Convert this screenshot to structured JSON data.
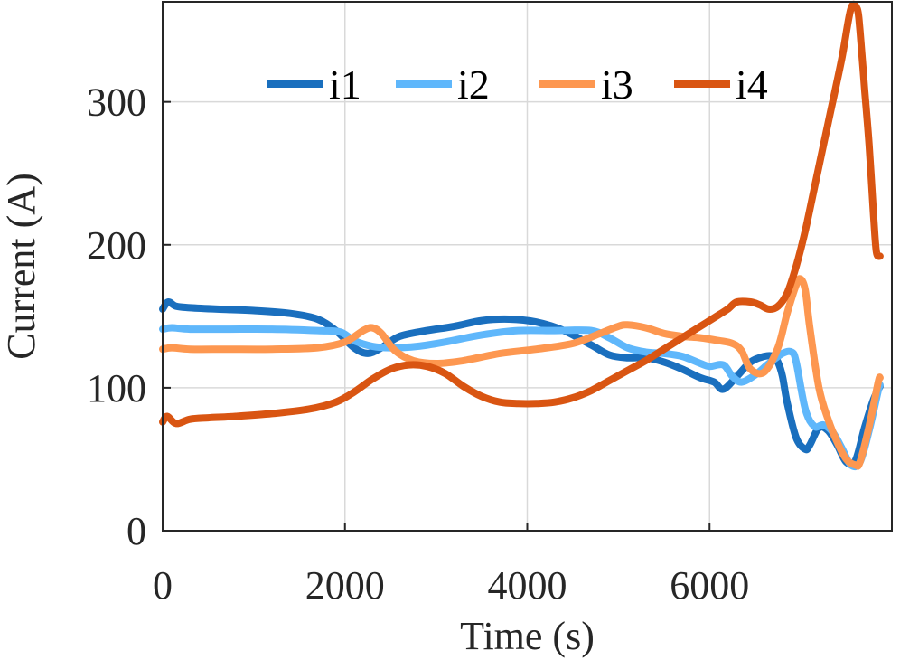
{
  "chart_data": {
    "type": "line",
    "title": "",
    "xlabel": "Time (s)",
    "ylabel": "Current (A)",
    "xlim": [
      0,
      8000
    ],
    "ylim": [
      0,
      370
    ],
    "xticks": [
      0,
      2000,
      4000,
      6000
    ],
    "yticks": [
      0,
      100,
      200,
      300
    ],
    "grid": true,
    "legend_placement": "top",
    "series": [
      {
        "name": "i1",
        "color": "#1a6fbe",
        "x": [
          0,
          60,
          150,
          300,
          600,
          1000,
          1400,
          1700,
          1900,
          2100,
          2250,
          2400,
          2600,
          2900,
          3200,
          3500,
          3800,
          4100,
          4400,
          4700,
          4900,
          5100,
          5300,
          5500,
          5700,
          5900,
          6050,
          6150,
          6300,
          6450,
          6600,
          6700,
          6750,
          6800,
          6850,
          6950,
          7050,
          7100,
          7200,
          7300,
          7400,
          7500,
          7600,
          7700,
          7800,
          7870
        ],
        "y": [
          155,
          160,
          157,
          156,
          155,
          154,
          152,
          148,
          140,
          128,
          124,
          128,
          136,
          140,
          143,
          147,
          148,
          146,
          140,
          130,
          123,
          121,
          121,
          118,
          113,
          107,
          104,
          99,
          108,
          118,
          122,
          122,
          118,
          108,
          90,
          65,
          57,
          60,
          72,
          70,
          60,
          48,
          49,
          72,
          92,
          101
        ]
      },
      {
        "name": "i2",
        "color": "#5fb7fb",
        "x": [
          0,
          100,
          300,
          700,
          1200,
          1700,
          1950,
          2100,
          2300,
          2500,
          2800,
          3100,
          3500,
          3900,
          4300,
          4700,
          4900,
          5100,
          5300,
          5500,
          5700,
          5900,
          6000,
          6150,
          6250,
          6350,
          6500,
          6650,
          6800,
          6900,
          6950,
          7050,
          7150,
          7250,
          7350,
          7450,
          7550,
          7650,
          7750,
          7850,
          7870
        ],
        "y": [
          141,
          142,
          141,
          141,
          141,
          140,
          139,
          133,
          129,
          128,
          129,
          132,
          137,
          140,
          140,
          140,
          135,
          128,
          125,
          124,
          122,
          117,
          115,
          116,
          108,
          104,
          109,
          117,
          124,
          125,
          118,
          85,
          73,
          74,
          69,
          58,
          46,
          48,
          70,
          98,
          102
        ]
      },
      {
        "name": "i3",
        "color": "#fd9750",
        "x": [
          0,
          100,
          300,
          700,
          1200,
          1700,
          2000,
          2200,
          2300,
          2400,
          2550,
          2750,
          3000,
          3300,
          3700,
          4100,
          4500,
          4800,
          5000,
          5100,
          5300,
          5500,
          5700,
          5900,
          6100,
          6250,
          6350,
          6450,
          6600,
          6750,
          6850,
          6950,
          7000,
          7050,
          7100,
          7200,
          7300,
          7400,
          7500,
          7600,
          7650,
          7750,
          7850,
          7870
        ],
        "y": [
          127,
          128,
          127,
          127,
          127,
          128,
          132,
          140,
          142,
          138,
          126,
          119,
          117,
          119,
          124,
          127,
          131,
          138,
          143,
          144,
          142,
          138,
          136,
          135,
          133,
          131,
          126,
          113,
          111,
          128,
          152,
          172,
          176,
          168,
          142,
          100,
          78,
          62,
          50,
          46,
          48,
          73,
          104,
          107
        ]
      },
      {
        "name": "i4",
        "color": "#d95512",
        "x": [
          0,
          50,
          150,
          300,
          500,
          800,
          1200,
          1600,
          1900,
          2100,
          2300,
          2500,
          2700,
          2900,
          3100,
          3300,
          3500,
          3700,
          3900,
          4100,
          4300,
          4500,
          4700,
          4900,
          5100,
          5300,
          5500,
          5700,
          5900,
          6100,
          6200,
          6300,
          6450,
          6550,
          6650,
          6750,
          6850,
          6950,
          7050,
          7150,
          7300,
          7450,
          7550,
          7620,
          7650,
          7700,
          7750,
          7800,
          7830,
          7870
        ],
        "y": [
          76,
          80,
          75,
          78,
          79,
          80,
          82,
          85,
          90,
          97,
          106,
          113,
          116,
          115,
          110,
          101,
          94,
          90,
          89,
          89,
          90,
          93,
          98,
          105,
          112,
          119,
          127,
          135,
          143,
          151,
          155,
          160,
          160,
          158,
          155,
          157,
          166,
          185,
          210,
          240,
          285,
          330,
          365,
          365,
          350,
          310,
          270,
          220,
          195,
          192
        ]
      }
    ]
  }
}
